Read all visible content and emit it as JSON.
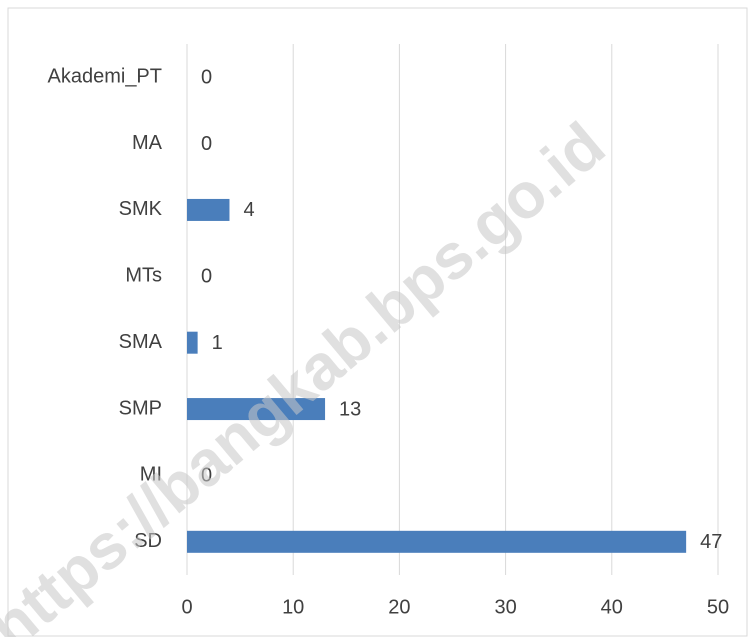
{
  "chart_data": {
    "type": "bar",
    "orientation": "horizontal",
    "categories": [
      "Akademi_PT",
      "MA",
      "SMK",
      "MTs",
      "SMA",
      "SMP",
      "MI",
      "SD"
    ],
    "values": [
      0,
      0,
      4,
      0,
      1,
      13,
      0,
      47
    ],
    "color": "#4a7ebb",
    "xlim": [
      0,
      50
    ],
    "xticks": [
      0,
      10,
      20,
      30,
      40,
      50
    ],
    "grid": true,
    "watermark": "https://bangkab.bps.go.id"
  }
}
